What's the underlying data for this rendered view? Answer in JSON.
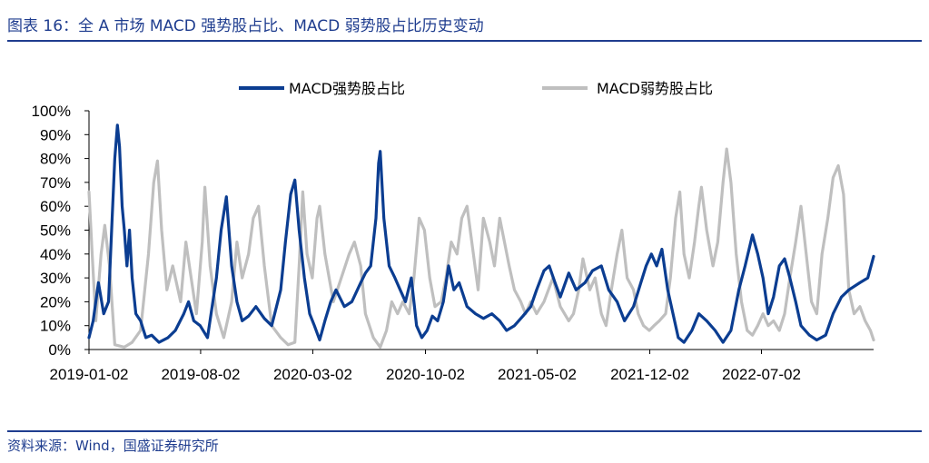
{
  "header": {
    "title": "图表 16：全 A 市场 MACD 强势股占比、MACD 弱势股占比历史变动"
  },
  "footer": {
    "source": "资料来源：Wind，国盛证券研究所"
  },
  "colors": {
    "strong": "#0b3d91",
    "weak": "#bfbfbf",
    "brand": "#1f3d8f"
  },
  "chart_data": {
    "type": "line",
    "title": "",
    "xlabel": "",
    "ylabel": "",
    "ylim": [
      0,
      100
    ],
    "y_unit": "%",
    "y_ticks": [
      "0%",
      "10%",
      "20%",
      "30%",
      "40%",
      "50%",
      "60%",
      "70%",
      "80%",
      "90%",
      "100%"
    ],
    "x_tick_labels": [
      "2019-01-02",
      "2019-08-02",
      "2020-03-02",
      "2020-10-02",
      "2021-05-02",
      "2021-12-02",
      "2022-07-02"
    ],
    "x_range": [
      "2019-01-02",
      "2023-01-31"
    ],
    "legend": {
      "placement": "top-center"
    },
    "grid": false,
    "series": [
      {
        "name": "MACD强势股占比",
        "color": "#0b3d91",
        "points": [
          [
            "2019-01-02",
            5
          ],
          [
            "2019-01-10",
            12
          ],
          [
            "2019-01-20",
            28
          ],
          [
            "2019-01-30",
            15
          ],
          [
            "2019-02-08",
            20
          ],
          [
            "2019-02-15",
            55
          ],
          [
            "2019-02-20",
            80
          ],
          [
            "2019-02-25",
            94
          ],
          [
            "2019-03-01",
            85
          ],
          [
            "2019-03-06",
            60
          ],
          [
            "2019-03-10",
            50
          ],
          [
            "2019-03-15",
            35
          ],
          [
            "2019-03-20",
            50
          ],
          [
            "2019-03-25",
            30
          ],
          [
            "2019-04-01",
            15
          ],
          [
            "2019-04-10",
            12
          ],
          [
            "2019-04-20",
            5
          ],
          [
            "2019-05-01",
            6
          ],
          [
            "2019-05-15",
            3
          ],
          [
            "2019-06-01",
            5
          ],
          [
            "2019-06-15",
            8
          ],
          [
            "2019-07-01",
            15
          ],
          [
            "2019-07-10",
            20
          ],
          [
            "2019-07-20",
            12
          ],
          [
            "2019-08-01",
            10
          ],
          [
            "2019-08-15",
            5
          ],
          [
            "2019-09-01",
            30
          ],
          [
            "2019-09-10",
            50
          ],
          [
            "2019-09-20",
            64
          ],
          [
            "2019-09-30",
            35
          ],
          [
            "2019-10-10",
            20
          ],
          [
            "2019-10-20",
            12
          ],
          [
            "2019-11-01",
            14
          ],
          [
            "2019-11-15",
            18
          ],
          [
            "2019-12-01",
            13
          ],
          [
            "2019-12-15",
            10
          ],
          [
            "2020-01-01",
            25
          ],
          [
            "2020-01-10",
            45
          ],
          [
            "2020-01-20",
            65
          ],
          [
            "2020-01-28",
            71
          ],
          [
            "2020-02-05",
            50
          ],
          [
            "2020-02-15",
            30
          ],
          [
            "2020-02-25",
            15
          ],
          [
            "2020-03-05",
            10
          ],
          [
            "2020-03-15",
            4
          ],
          [
            "2020-03-25",
            12
          ],
          [
            "2020-04-05",
            20
          ],
          [
            "2020-04-15",
            25
          ],
          [
            "2020-05-01",
            18
          ],
          [
            "2020-05-15",
            20
          ],
          [
            "2020-06-01",
            28
          ],
          [
            "2020-06-10",
            32
          ],
          [
            "2020-06-20",
            35
          ],
          [
            "2020-06-30",
            55
          ],
          [
            "2020-07-05",
            78
          ],
          [
            "2020-07-08",
            83
          ],
          [
            "2020-07-15",
            55
          ],
          [
            "2020-07-25",
            35
          ],
          [
            "2020-08-05",
            30
          ],
          [
            "2020-08-15",
            25
          ],
          [
            "2020-08-25",
            20
          ],
          [
            "2020-09-05",
            30
          ],
          [
            "2020-09-15",
            10
          ],
          [
            "2020-09-25",
            5
          ],
          [
            "2020-10-05",
            8
          ],
          [
            "2020-10-15",
            14
          ],
          [
            "2020-10-25",
            12
          ],
          [
            "2020-11-05",
            20
          ],
          [
            "2020-11-15",
            35
          ],
          [
            "2020-11-25",
            25
          ],
          [
            "2020-12-05",
            28
          ],
          [
            "2020-12-20",
            18
          ],
          [
            "2021-01-05",
            15
          ],
          [
            "2021-01-20",
            13
          ],
          [
            "2021-02-05",
            15
          ],
          [
            "2021-02-20",
            12
          ],
          [
            "2021-03-05",
            8
          ],
          [
            "2021-03-20",
            10
          ],
          [
            "2021-04-05",
            14
          ],
          [
            "2021-04-20",
            18
          ],
          [
            "2021-05-01",
            25
          ],
          [
            "2021-05-15",
            33
          ],
          [
            "2021-05-25",
            35
          ],
          [
            "2021-06-05",
            28
          ],
          [
            "2021-06-15",
            22
          ],
          [
            "2021-07-01",
            32
          ],
          [
            "2021-07-15",
            25
          ],
          [
            "2021-08-01",
            28
          ],
          [
            "2021-08-15",
            33
          ],
          [
            "2021-09-01",
            35
          ],
          [
            "2021-09-15",
            25
          ],
          [
            "2021-10-01",
            20
          ],
          [
            "2021-10-15",
            12
          ],
          [
            "2021-11-01",
            18
          ],
          [
            "2021-11-15",
            28
          ],
          [
            "2021-11-25",
            35
          ],
          [
            "2021-12-05",
            40
          ],
          [
            "2021-12-15",
            35
          ],
          [
            "2021-12-25",
            42
          ],
          [
            "2022-01-05",
            25
          ],
          [
            "2022-01-15",
            15
          ],
          [
            "2022-01-25",
            5
          ],
          [
            "2022-02-05",
            3
          ],
          [
            "2022-02-20",
            8
          ],
          [
            "2022-03-05",
            15
          ],
          [
            "2022-03-20",
            12
          ],
          [
            "2022-04-05",
            8
          ],
          [
            "2022-04-20",
            3
          ],
          [
            "2022-05-05",
            8
          ],
          [
            "2022-05-20",
            25
          ],
          [
            "2022-06-01",
            35
          ],
          [
            "2022-06-15",
            48
          ],
          [
            "2022-06-25",
            40
          ],
          [
            "2022-07-05",
            30
          ],
          [
            "2022-07-15",
            15
          ],
          [
            "2022-07-25",
            22
          ],
          [
            "2022-08-05",
            35
          ],
          [
            "2022-08-15",
            38
          ],
          [
            "2022-08-25",
            30
          ],
          [
            "2022-09-05",
            20
          ],
          [
            "2022-09-15",
            10
          ],
          [
            "2022-10-01",
            6
          ],
          [
            "2022-10-15",
            4
          ],
          [
            "2022-11-01",
            6
          ],
          [
            "2022-11-15",
            15
          ],
          [
            "2022-12-01",
            22
          ],
          [
            "2022-12-15",
            25
          ],
          [
            "2023-01-05",
            28
          ],
          [
            "2023-01-20",
            30
          ],
          [
            "2023-01-31",
            39
          ]
        ]
      },
      {
        "name": "MACD弱势股占比",
        "color": "#bfbfbf",
        "points": [
          [
            "2019-01-02",
            66
          ],
          [
            "2019-01-08",
            40
          ],
          [
            "2019-01-15",
            12
          ],
          [
            "2019-01-25",
            40
          ],
          [
            "2019-02-01",
            52
          ],
          [
            "2019-02-10",
            35
          ],
          [
            "2019-02-20",
            2
          ],
          [
            "2019-03-10",
            1
          ],
          [
            "2019-03-25",
            3
          ],
          [
            "2019-04-10",
            8
          ],
          [
            "2019-04-25",
            40
          ],
          [
            "2019-05-05",
            70
          ],
          [
            "2019-05-12",
            79
          ],
          [
            "2019-05-20",
            50
          ],
          [
            "2019-05-30",
            25
          ],
          [
            "2019-06-10",
            35
          ],
          [
            "2019-06-25",
            20
          ],
          [
            "2019-07-05",
            45
          ],
          [
            "2019-07-15",
            30
          ],
          [
            "2019-07-25",
            15
          ],
          [
            "2019-08-05",
            45
          ],
          [
            "2019-08-10",
            68
          ],
          [
            "2019-08-20",
            35
          ],
          [
            "2019-09-01",
            15
          ],
          [
            "2019-09-15",
            5
          ],
          [
            "2019-09-30",
            20
          ],
          [
            "2019-10-10",
            45
          ],
          [
            "2019-10-20",
            30
          ],
          [
            "2019-11-01",
            40
          ],
          [
            "2019-11-10",
            55
          ],
          [
            "2019-11-20",
            60
          ],
          [
            "2019-12-01",
            35
          ],
          [
            "2019-12-15",
            10
          ],
          [
            "2020-01-01",
            5
          ],
          [
            "2020-01-15",
            2
          ],
          [
            "2020-01-28",
            3
          ],
          [
            "2020-02-05",
            35
          ],
          [
            "2020-02-12",
            66
          ],
          [
            "2020-02-20",
            40
          ],
          [
            "2020-03-01",
            30
          ],
          [
            "2020-03-10",
            55
          ],
          [
            "2020-03-15",
            60
          ],
          [
            "2020-03-25",
            40
          ],
          [
            "2020-04-10",
            20
          ],
          [
            "2020-04-25",
            30
          ],
          [
            "2020-05-10",
            40
          ],
          [
            "2020-05-20",
            45
          ],
          [
            "2020-06-01",
            35
          ],
          [
            "2020-06-10",
            15
          ],
          [
            "2020-06-25",
            5
          ],
          [
            "2020-07-08",
            1
          ],
          [
            "2020-07-20",
            8
          ],
          [
            "2020-07-30",
            20
          ],
          [
            "2020-08-10",
            15
          ],
          [
            "2020-08-20",
            20
          ],
          [
            "2020-09-01",
            15
          ],
          [
            "2020-09-10",
            30
          ],
          [
            "2020-09-20",
            55
          ],
          [
            "2020-09-30",
            50
          ],
          [
            "2020-10-10",
            30
          ],
          [
            "2020-10-20",
            18
          ],
          [
            "2020-11-01",
            20
          ],
          [
            "2020-11-10",
            30
          ],
          [
            "2020-11-20",
            45
          ],
          [
            "2020-12-01",
            40
          ],
          [
            "2020-12-10",
            55
          ],
          [
            "2020-12-20",
            60
          ],
          [
            "2021-01-01",
            40
          ],
          [
            "2021-01-10",
            25
          ],
          [
            "2021-01-20",
            55
          ],
          [
            "2021-02-01",
            45
          ],
          [
            "2021-02-10",
            35
          ],
          [
            "2021-02-20",
            55
          ],
          [
            "2021-03-01",
            45
          ],
          [
            "2021-03-10",
            35
          ],
          [
            "2021-03-20",
            25
          ],
          [
            "2021-04-01",
            20
          ],
          [
            "2021-04-10",
            15
          ],
          [
            "2021-04-20",
            20
          ],
          [
            "2021-05-01",
            15
          ],
          [
            "2021-05-15",
            20
          ],
          [
            "2021-06-01",
            30
          ],
          [
            "2021-06-15",
            18
          ],
          [
            "2021-07-01",
            12
          ],
          [
            "2021-07-10",
            15
          ],
          [
            "2021-07-20",
            25
          ],
          [
            "2021-07-28",
            38
          ],
          [
            "2021-08-10",
            25
          ],
          [
            "2021-08-20",
            30
          ],
          [
            "2021-09-01",
            15
          ],
          [
            "2021-09-10",
            10
          ],
          [
            "2021-09-20",
            25
          ],
          [
            "2021-10-01",
            40
          ],
          [
            "2021-10-10",
            50
          ],
          [
            "2021-10-20",
            30
          ],
          [
            "2021-11-01",
            25
          ],
          [
            "2021-11-10",
            15
          ],
          [
            "2021-11-20",
            10
          ],
          [
            "2021-12-01",
            8
          ],
          [
            "2021-12-10",
            10
          ],
          [
            "2021-12-20",
            12
          ],
          [
            "2022-01-01",
            15
          ],
          [
            "2022-01-10",
            30
          ],
          [
            "2022-01-20",
            55
          ],
          [
            "2022-01-28",
            66
          ],
          [
            "2022-02-05",
            40
          ],
          [
            "2022-02-15",
            30
          ],
          [
            "2022-02-25",
            45
          ],
          [
            "2022-03-05",
            60
          ],
          [
            "2022-03-10",
            68
          ],
          [
            "2022-03-20",
            50
          ],
          [
            "2022-04-01",
            35
          ],
          [
            "2022-04-10",
            45
          ],
          [
            "2022-04-20",
            70
          ],
          [
            "2022-04-27",
            84
          ],
          [
            "2022-05-05",
            70
          ],
          [
            "2022-05-15",
            40
          ],
          [
            "2022-05-25",
            20
          ],
          [
            "2022-06-05",
            8
          ],
          [
            "2022-06-15",
            6
          ],
          [
            "2022-06-25",
            10
          ],
          [
            "2022-07-05",
            15
          ],
          [
            "2022-07-15",
            10
          ],
          [
            "2022-07-25",
            12
          ],
          [
            "2022-08-05",
            8
          ],
          [
            "2022-08-15",
            15
          ],
          [
            "2022-08-25",
            30
          ],
          [
            "2022-09-05",
            45
          ],
          [
            "2022-09-15",
            60
          ],
          [
            "2022-09-25",
            40
          ],
          [
            "2022-10-05",
            20
          ],
          [
            "2022-10-15",
            15
          ],
          [
            "2022-10-25",
            40
          ],
          [
            "2022-11-05",
            55
          ],
          [
            "2022-11-15",
            72
          ],
          [
            "2022-11-25",
            77
          ],
          [
            "2022-12-05",
            65
          ],
          [
            "2022-12-15",
            25
          ],
          [
            "2022-12-25",
            15
          ],
          [
            "2023-01-05",
            18
          ],
          [
            "2023-01-15",
            12
          ],
          [
            "2023-01-25",
            8
          ],
          [
            "2023-01-31",
            4
          ]
        ]
      }
    ]
  }
}
